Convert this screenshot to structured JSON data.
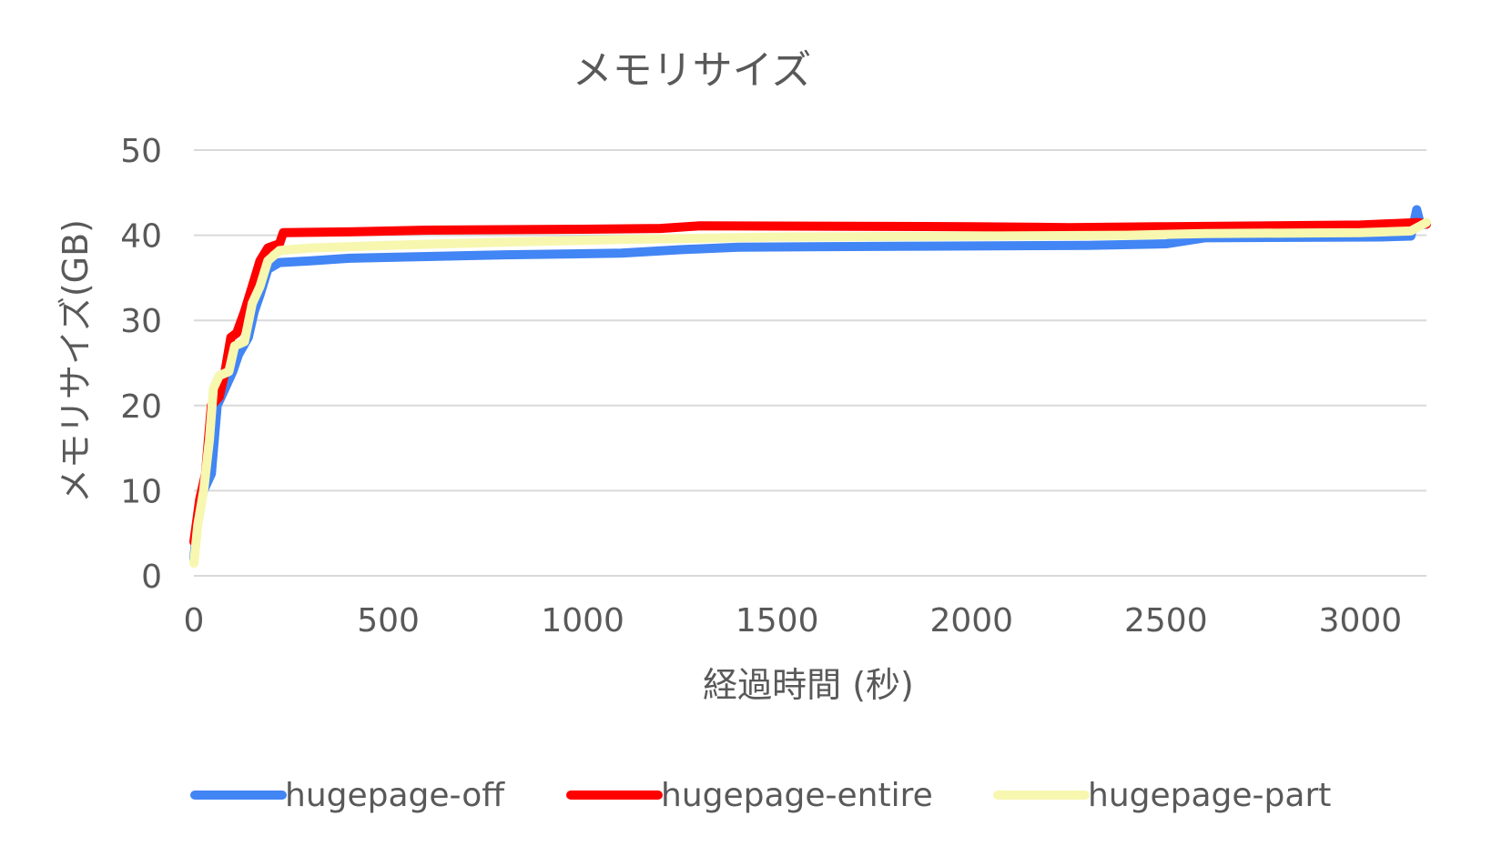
{
  "chart_data": {
    "type": "line",
    "title": "メモリサイズ",
    "xlabel": "経過時間 (秒)",
    "ylabel": "メモリサイズ(GB)",
    "xlim": [
      0,
      3170
    ],
    "ylim": [
      0,
      50
    ],
    "xticks": [
      0,
      500,
      1000,
      1500,
      2000,
      2500,
      3000
    ],
    "yticks": [
      0,
      10,
      20,
      30,
      40,
      50
    ],
    "grid": true,
    "legend": "bottom",
    "series": [
      {
        "name": "hugepage-off",
        "color": "#4285f4",
        "points": [
          [
            0,
            2
          ],
          [
            10,
            7
          ],
          [
            25,
            10
          ],
          [
            45,
            12
          ],
          [
            60,
            20
          ],
          [
            80,
            22
          ],
          [
            100,
            24
          ],
          [
            115,
            26
          ],
          [
            140,
            28
          ],
          [
            155,
            31
          ],
          [
            170,
            33
          ],
          [
            190,
            36
          ],
          [
            220,
            36.8
          ],
          [
            300,
            37
          ],
          [
            400,
            37.3
          ],
          [
            600,
            37.5
          ],
          [
            800,
            37.7
          ],
          [
            1100,
            37.9
          ],
          [
            1250,
            38.3
          ],
          [
            1400,
            38.6
          ],
          [
            1800,
            38.7
          ],
          [
            2300,
            38.8
          ],
          [
            2500,
            39.0
          ],
          [
            2600,
            39.7
          ],
          [
            3050,
            39.8
          ],
          [
            3130,
            39.9
          ],
          [
            3145,
            43
          ],
          [
            3155,
            41.2
          ],
          [
            3170,
            41.3
          ]
        ]
      },
      {
        "name": "hugepage-entire",
        "color": "#ff0000",
        "points": [
          [
            0,
            4
          ],
          [
            15,
            9
          ],
          [
            30,
            12
          ],
          [
            45,
            20
          ],
          [
            65,
            21
          ],
          [
            80,
            24
          ],
          [
            95,
            28
          ],
          [
            110,
            28.5
          ],
          [
            130,
            31
          ],
          [
            150,
            34
          ],
          [
            170,
            37
          ],
          [
            190,
            38.5
          ],
          [
            220,
            39
          ],
          [
            230,
            40.3
          ],
          [
            400,
            40.4
          ],
          [
            600,
            40.6
          ],
          [
            1000,
            40.7
          ],
          [
            1200,
            40.8
          ],
          [
            1300,
            41.1
          ],
          [
            2000,
            41.0
          ],
          [
            2250,
            40.9
          ],
          [
            2500,
            41.0
          ],
          [
            3000,
            41.2
          ],
          [
            3150,
            41.5
          ],
          [
            3170,
            41.3
          ]
        ]
      },
      {
        "name": "hugepage-part",
        "color": "#f7f7b0",
        "points": [
          [
            0,
            1.5
          ],
          [
            10,
            6
          ],
          [
            25,
            10
          ],
          [
            40,
            16
          ],
          [
            50,
            22
          ],
          [
            65,
            23.5
          ],
          [
            90,
            24
          ],
          [
            105,
            27
          ],
          [
            130,
            27.5
          ],
          [
            150,
            32
          ],
          [
            170,
            34
          ],
          [
            190,
            37
          ],
          [
            220,
            38.2
          ],
          [
            300,
            38.5
          ],
          [
            500,
            38.8
          ],
          [
            800,
            39.2
          ],
          [
            1100,
            39.5
          ],
          [
            1500,
            39.8
          ],
          [
            2000,
            39.9
          ],
          [
            2400,
            40.0
          ],
          [
            2600,
            40.2
          ],
          [
            3000,
            40.3
          ],
          [
            3130,
            40.5
          ],
          [
            3170,
            41.5
          ]
        ]
      }
    ]
  }
}
